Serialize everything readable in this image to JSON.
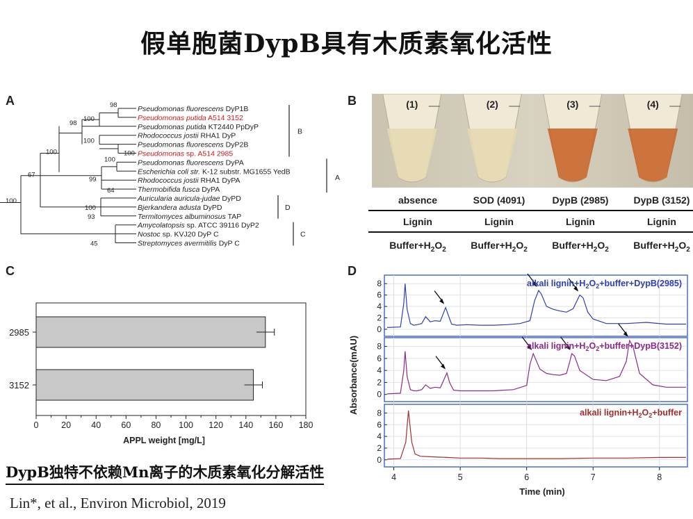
{
  "title": "假单胞菌DypB具有木质素氧化活性",
  "panels": {
    "a": "A",
    "b": "B",
    "c": "C",
    "d": "D"
  },
  "tree": {
    "leaves": [
      {
        "genus": "Pseudomonas fluorescens",
        "rest": " DyP1B",
        "red": false
      },
      {
        "genus": "Pseudomonas putida",
        "rest": " A514 3152",
        "red": true
      },
      {
        "genus": "Pseudomonas putida",
        "rest": " KT2440 PpDyP",
        "red": false
      },
      {
        "genus": "Rhodococcus jostii",
        "rest": " RHA1 DyP",
        "red": false
      },
      {
        "genus": "Pseudomonas fluorescens",
        "rest": " DyP2B",
        "red": false
      },
      {
        "genus": "Pseudomonas",
        "rest": " sp. A514 2985",
        "red": true
      },
      {
        "genus": "Pseudomonas fluorescens",
        "rest": " DyPA",
        "red": false
      },
      {
        "genus": "Escherichia coli str.",
        "rest": " K-12 substr. MG1655  YedB",
        "red": false
      },
      {
        "genus": "Rhodococcus jostii",
        "rest": " RHA1 DyPA",
        "red": false
      },
      {
        "genus": "Thermobifida fusca",
        "rest": "  DyPA",
        "red": false
      },
      {
        "genus": "Auricularia auricula-judae",
        "rest": " DyPD",
        "red": false
      },
      {
        "genus": "Bjerkandera adusta",
        "rest": " DyPD",
        "red": false
      },
      {
        "genus": "Termitomyces albuminosus",
        "rest": " TAP",
        "red": false
      },
      {
        "genus": "Amycolatopsis",
        "rest": " sp. ATCC 39116 DyP2",
        "red": false
      },
      {
        "genus": "Nostoc",
        "rest": " sp. KVJ20 DyP C",
        "red": false
      },
      {
        "genus": "Streptomyces avermitilis",
        "rest": " DyP C",
        "red": false
      }
    ],
    "bootstraps": [
      "98",
      "100",
      "98",
      "100",
      "100",
      "100",
      "100",
      "99",
      "64",
      "67",
      "100",
      "100",
      "93",
      "45"
    ],
    "clades": [
      "B",
      "A",
      "D",
      "C"
    ]
  },
  "tubes": {
    "labels": [
      "(1)",
      "(2)",
      "(3)",
      "(4)"
    ],
    "enzymes": [
      "absence",
      "SOD (4091)",
      "DypB (2985)",
      "DypB (3152)"
    ],
    "substrate": [
      "Lignin",
      "Lignin",
      "Lignin",
      "Lignin"
    ],
    "buffer_prefix": "Buffer+H",
    "buffer_sub": "2",
    "buffer_mid": "O",
    "liquid_colors": [
      "#e6d9b2",
      "#e6d9b2",
      "#c9662e",
      "#c9662e"
    ]
  },
  "chart_data": [
    {
      "type": "bar",
      "orientation": "horizontal",
      "categories": [
        "2985",
        "3152"
      ],
      "values": [
        153,
        145
      ],
      "errors": [
        6,
        6
      ],
      "xlabel": "APPL weight [mg/L]",
      "xlim": [
        0,
        180
      ],
      "xticks": [
        "0",
        "20",
        "40",
        "60",
        "80",
        "100",
        "120",
        "140",
        "160",
        "180"
      ],
      "bar_color": "#c8c8c8"
    },
    {
      "type": "line",
      "xlabel": "Time (min)",
      "ylabel": "Absorbance(mAU)",
      "xlim": [
        3.9,
        8.4
      ],
      "ylim": [
        -0.5,
        9
      ],
      "xticks": [
        "4",
        "5",
        "6",
        "7",
        "8"
      ],
      "yticks": [
        "0",
        "2",
        "4",
        "6",
        "8"
      ],
      "series": [
        {
          "name": "alkali lignin+H2O2+buffer+DypB(2985)",
          "legend": {
            "pre": "alkali lignin+H",
            "sub1": "2",
            "mid": "O",
            "sub2": "2",
            "post": "+buffer+DypB(2985)"
          },
          "color": "#2e3fb0",
          "x": [
            3.9,
            4.1,
            4.15,
            4.17,
            4.2,
            4.25,
            4.3,
            4.35,
            4.42,
            4.48,
            4.55,
            4.62,
            4.7,
            4.78,
            4.82,
            4.87,
            4.95,
            5.1,
            5.3,
            5.5,
            5.7,
            5.9,
            6.05,
            6.12,
            6.18,
            6.22,
            6.3,
            6.4,
            6.5,
            6.6,
            6.7,
            6.8,
            6.85,
            6.92,
            7.0,
            7.2,
            7.5,
            7.8,
            8.1,
            8.4
          ],
          "y": [
            0.3,
            0.4,
            4.5,
            8.0,
            3.5,
            1.0,
            0.7,
            0.8,
            1.0,
            2.2,
            1.3,
            1.5,
            1.4,
            3.8,
            2.5,
            0.9,
            0.7,
            0.8,
            0.7,
            0.7,
            0.8,
            1.0,
            1.5,
            5.0,
            6.8,
            6.2,
            4.0,
            3.5,
            3.2,
            3.0,
            3.6,
            6.0,
            5.5,
            3.0,
            1.8,
            1.0,
            1.0,
            1.2,
            0.9,
            0.9
          ],
          "arrows_at": [
            4.78,
            6.18,
            6.8
          ]
        },
        {
          "name": "alkali lignin+H2O2+buffer+DypB(3152)",
          "legend": {
            "pre": "alkali lignin+H",
            "sub1": "2",
            "mid": "O",
            "sub2": "2",
            "post": "+buffer+DypB(3152)"
          },
          "color": "#8a2a8a",
          "x": [
            3.9,
            4.1,
            4.15,
            4.17,
            4.2,
            4.25,
            4.3,
            4.35,
            4.42,
            4.48,
            4.55,
            4.62,
            4.7,
            4.8,
            4.84,
            4.9,
            5.0,
            5.2,
            5.5,
            5.8,
            6.0,
            6.05,
            6.1,
            6.15,
            6.2,
            6.3,
            6.4,
            6.5,
            6.6,
            6.65,
            6.68,
            6.72,
            6.8,
            7.0,
            7.2,
            7.4,
            7.5,
            7.55,
            7.6,
            7.7,
            7.9,
            8.1,
            8.4
          ],
          "y": [
            0.1,
            0.2,
            4.0,
            7.2,
            3.0,
            0.8,
            0.6,
            0.6,
            0.8,
            1.6,
            1.0,
            1.2,
            1.1,
            3.6,
            2.0,
            0.7,
            0.6,
            0.6,
            0.6,
            0.8,
            1.5,
            5.0,
            6.8,
            5.5,
            4.2,
            3.5,
            3.3,
            3.2,
            3.5,
            5.5,
            6.8,
            6.4,
            4.0,
            2.5,
            2.3,
            3.0,
            5.5,
            9.0,
            8.0,
            3.5,
            1.6,
            1.2,
            1.2
          ],
          "arrows_at": [
            4.8,
            6.1,
            6.68,
            7.55
          ]
        },
        {
          "name": "alkali lignin+H2O2+buffer",
          "legend": {
            "pre": "alkali lignin+H",
            "sub1": "2",
            "mid": "O",
            "sub2": "2",
            "post": "+buffer"
          },
          "color": "#a03030",
          "x": [
            3.9,
            4.1,
            4.18,
            4.22,
            4.27,
            4.32,
            4.4,
            4.6,
            4.8,
            5.0,
            5.3,
            5.6,
            6.0,
            6.5,
            7.0,
            7.5,
            8.0,
            8.4
          ],
          "y": [
            0.1,
            0.2,
            3.0,
            8.4,
            3.0,
            1.0,
            0.6,
            0.5,
            0.4,
            0.3,
            0.3,
            0.2,
            0.2,
            0.2,
            0.3,
            0.3,
            0.4,
            0.4
          ],
          "arrows_at": []
        }
      ]
    }
  ],
  "caption": {
    "bold1": "DypB",
    "t1": "独特不依赖",
    "bold2": "Mn",
    "t2": "离子的木质素氧化分解活性"
  },
  "citation": "Lin*, et al., Environ Microbiol, 2019"
}
